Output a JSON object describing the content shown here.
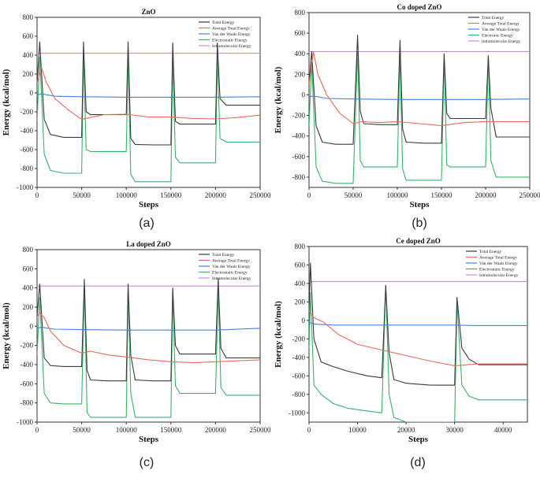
{
  "colors": {
    "total": "#3a3a3a",
    "average": "#f06a5a",
    "vdw": "#3f84e4",
    "electrostatic": "#39b36b",
    "intramolecular": "#c68be6",
    "axis": "#333333"
  },
  "chart_data": [
    {
      "type": "line",
      "title": "ZnO",
      "xlabel": "Steps",
      "ylabel": "Energy (kcal/mol)",
      "panel_label": "(a)",
      "xlim": [
        0,
        250000
      ],
      "ylim": [
        -1000,
        800
      ],
      "x_ticks": [
        0,
        50000,
        100000,
        150000,
        200000,
        250000
      ],
      "y_ticks": [
        -1000,
        -800,
        -600,
        -400,
        -200,
        0,
        200,
        400,
        600,
        800
      ],
      "legend": [
        "Total Energy",
        "Average Total Energy",
        "Van der Waals Energy",
        "Electrostatic Energy",
        "Intramolecular Energy"
      ],
      "legend_position": "top-right",
      "series": [
        {
          "name": "Total Energy",
          "color_key": "total",
          "x": [
            0,
            3000,
            8000,
            15000,
            30000,
            50000,
            52000,
            55000,
            60000,
            80000,
            100000,
            102000,
            105000,
            110000,
            130000,
            150000,
            152000,
            155000,
            160000,
            180000,
            200000,
            202000,
            205000,
            212000,
            230000,
            250000
          ],
          "y": [
            100,
            540,
            -280,
            -440,
            -470,
            -470,
            540,
            -200,
            -230,
            -230,
            -230,
            540,
            -480,
            -545,
            -550,
            -550,
            530,
            -300,
            -330,
            -330,
            -330,
            530,
            -60,
            -130,
            -130,
            -130
          ]
        },
        {
          "name": "Average Total Energy",
          "color_key": "average",
          "x": [
            0,
            5000,
            10000,
            20000,
            35000,
            50000,
            75000,
            100000,
            125000,
            150000,
            175000,
            200000,
            225000,
            250000
          ],
          "y": [
            100,
            270,
            120,
            -60,
            -180,
            -280,
            -230,
            -225,
            -255,
            -255,
            -270,
            -275,
            -260,
            -235
          ]
        },
        {
          "name": "Van der Waals Energy",
          "color_key": "vdw",
          "x": [
            0,
            5000,
            20000,
            50000,
            100000,
            150000,
            200000,
            250000
          ],
          "y": [
            -20,
            -10,
            -35,
            -40,
            -45,
            -45,
            -45,
            -40
          ]
        },
        {
          "name": "Electrostatic Energy",
          "color_key": "electrostatic",
          "x": [
            0,
            3000,
            8000,
            15000,
            30000,
            50000,
            52000,
            55000,
            60000,
            80000,
            100000,
            102000,
            105000,
            110000,
            130000,
            150000,
            152000,
            155000,
            160000,
            180000,
            200000,
            202000,
            205000,
            212000,
            230000,
            250000
          ],
          "y": [
            -300,
            380,
            -650,
            -820,
            -850,
            -850,
            380,
            -600,
            -620,
            -620,
            -620,
            380,
            -860,
            -940,
            -940,
            -940,
            380,
            -680,
            -740,
            -740,
            -740,
            380,
            -480,
            -520,
            -520,
            -520
          ]
        },
        {
          "name": "Intramolecular Energy",
          "color_key": "intramolecular",
          "x": [
            0,
            250000
          ],
          "y": [
            420,
            420
          ]
        }
      ]
    },
    {
      "type": "line",
      "title": "Co doped ZnO",
      "xlabel": "Steps",
      "ylabel": "Energy (kcal/mol)",
      "panel_label": "(b)",
      "xlim": [
        0,
        250000
      ],
      "ylim": [
        -900,
        800
      ],
      "x_ticks": [
        0,
        50000,
        100000,
        150000,
        200000,
        250000
      ],
      "y_ticks": [
        -800,
        -600,
        -400,
        -200,
        0,
        200,
        400,
        600,
        800
      ],
      "legend": [
        "Total Energy",
        "Average Total Energy",
        "Van der Waals Energy",
        "Electronic Energy",
        "Intramolecular Energy"
      ],
      "legend_position": "top-right",
      "series": [
        {
          "name": "Total Energy",
          "color_key": "total",
          "x": [
            0,
            3000,
            8000,
            15000,
            30000,
            50000,
            55000,
            58000,
            62000,
            80000,
            100000,
            103000,
            106000,
            110000,
            130000,
            150000,
            153000,
            156000,
            160000,
            180000,
            200000,
            203000,
            206000,
            212000,
            230000,
            250000
          ],
          "y": [
            100,
            420,
            -300,
            -460,
            -480,
            -480,
            580,
            -160,
            -280,
            -290,
            -290,
            530,
            -330,
            -460,
            -470,
            -470,
            400,
            -180,
            -230,
            -230,
            -230,
            380,
            -130,
            -410,
            -410,
            -410
          ]
        },
        {
          "name": "Average Total Energy",
          "color_key": "average",
          "x": [
            0,
            5000,
            10000,
            20000,
            35000,
            50000,
            60000,
            80000,
            100000,
            125000,
            150000,
            175000,
            200000,
            225000,
            250000
          ],
          "y": [
            100,
            420,
            200,
            0,
            -180,
            -280,
            -260,
            -270,
            -260,
            -280,
            -300,
            -270,
            -260,
            -260,
            -260
          ]
        },
        {
          "name": "Van der Waals Energy",
          "color_key": "vdw",
          "x": [
            0,
            5000,
            20000,
            50000,
            100000,
            150000,
            200000,
            250000
          ],
          "y": [
            -20,
            -10,
            -35,
            -40,
            -45,
            -45,
            -45,
            -40
          ]
        },
        {
          "name": "Electronic Energy",
          "color_key": "electrostatic",
          "x": [
            0,
            3000,
            8000,
            15000,
            30000,
            50000,
            55000,
            58000,
            62000,
            80000,
            100000,
            103000,
            106000,
            110000,
            130000,
            150000,
            153000,
            156000,
            160000,
            180000,
            200000,
            203000,
            206000,
            212000,
            230000,
            250000
          ],
          "y": [
            -300,
            320,
            -700,
            -840,
            -860,
            -860,
            420,
            -640,
            -700,
            -700,
            -700,
            400,
            -720,
            -830,
            -830,
            -830,
            380,
            -680,
            -700,
            -700,
            -700,
            380,
            -640,
            -800,
            -800,
            -800
          ]
        },
        {
          "name": "Intramolecular Energy",
          "color_key": "intramolecular",
          "x": [
            0,
            250000
          ],
          "y": [
            420,
            420
          ]
        }
      ]
    },
    {
      "type": "line",
      "title": "La doped ZnO",
      "xlabel": "Steps",
      "ylabel": "Energy (kcal/mol)",
      "panel_label": "(c)",
      "xlim": [
        0,
        250000
      ],
      "ylim": [
        -1000,
        800
      ],
      "x_ticks": [
        0,
        50000,
        100000,
        150000,
        200000,
        250000
      ],
      "y_ticks": [
        -1000,
        -800,
        -600,
        -400,
        -200,
        0,
        200,
        400,
        600,
        800
      ],
      "legend": [
        "Total Energy",
        "Average Total Energy",
        "Van der Waals Energy",
        "Electrostatic Energy",
        "Intramolecular Energy"
      ],
      "legend_position": "top-right",
      "series": [
        {
          "name": "Total Energy",
          "color_key": "total",
          "x": [
            0,
            3000,
            8000,
            15000,
            30000,
            50000,
            53000,
            56000,
            60000,
            80000,
            100000,
            102000,
            105000,
            110000,
            130000,
            150000,
            152000,
            155000,
            160000,
            180000,
            200000,
            203000,
            206000,
            212000,
            230000,
            250000
          ],
          "y": [
            100,
            440,
            -330,
            -410,
            -420,
            -420,
            490,
            -460,
            -560,
            -570,
            -570,
            440,
            -300,
            -560,
            -570,
            -570,
            400,
            -200,
            -290,
            -290,
            -290,
            500,
            -230,
            -330,
            -330,
            -330
          ]
        },
        {
          "name": "Average Total Energy",
          "color_key": "average",
          "x": [
            0,
            3000,
            8000,
            15000,
            30000,
            50000,
            60000,
            80000,
            100000,
            125000,
            150000,
            175000,
            200000,
            225000,
            250000
          ],
          "y": [
            100,
            140,
            90,
            -50,
            -200,
            -280,
            -260,
            -300,
            -320,
            -350,
            -370,
            -380,
            -370,
            -360,
            -350
          ]
        },
        {
          "name": "Van der Waals Energy",
          "color_key": "vdw",
          "x": [
            0,
            5000,
            20000,
            50000,
            100000,
            150000,
            200000,
            250000
          ],
          "y": [
            -20,
            -10,
            -30,
            -35,
            -40,
            -40,
            -40,
            -20
          ]
        },
        {
          "name": "Electrostatic Energy",
          "color_key": "electrostatic",
          "x": [
            0,
            3000,
            8000,
            15000,
            30000,
            50000,
            53000,
            56000,
            60000,
            80000,
            100000,
            102000,
            105000,
            110000,
            130000,
            150000,
            152000,
            155000,
            160000,
            180000,
            200000,
            203000,
            206000,
            212000,
            230000,
            250000
          ],
          "y": [
            -300,
            300,
            -700,
            -800,
            -810,
            -810,
            420,
            -900,
            -950,
            -950,
            -950,
            380,
            -700,
            -950,
            -950,
            -950,
            380,
            -620,
            -700,
            -700,
            -700,
            380,
            -640,
            -720,
            -720,
            -720
          ]
        },
        {
          "name": "Intramolecular Energy",
          "color_key": "intramolecular",
          "x": [
            0,
            250000
          ],
          "y": [
            420,
            420
          ]
        }
      ]
    },
    {
      "type": "line",
      "title": "Ce doped ZnO",
      "xlabel": "Steps",
      "ylabel": "Energy (kcal/mol)",
      "panel_label": "(d)",
      "xlim": [
        0,
        45000
      ],
      "ylim": [
        -1100,
        800
      ],
      "x_ticks": [
        0,
        10000,
        20000,
        30000,
        40000
      ],
      "y_ticks": [
        -1000,
        -800,
        -600,
        -400,
        -200,
        0,
        200,
        400,
        600,
        800
      ],
      "legend": [
        "Total Energy",
        "Average Total Energy",
        "Van der Waals Energy",
        "Electrostatic Energy",
        "Intramolecular Energy"
      ],
      "legend_position": "top-right",
      "series": [
        {
          "name": "Total Energy",
          "color_key": "total",
          "x": [
            0,
            300,
            1000,
            2500,
            5000,
            8000,
            12000,
            15000,
            15800,
            16500,
            17500,
            20000,
            25000,
            30000,
            30500,
            31500,
            33000,
            35000,
            40000,
            45000
          ],
          "y": [
            100,
            620,
            -200,
            -450,
            -500,
            -550,
            -600,
            -620,
            380,
            -350,
            -640,
            -680,
            -700,
            -700,
            250,
            -300,
            -420,
            -480,
            -480,
            -480
          ]
        },
        {
          "name": "Average Total Energy",
          "color_key": "average",
          "x": [
            0,
            1000,
            3000,
            6000,
            10000,
            15000,
            20000,
            25000,
            30000,
            35000,
            40000,
            45000
          ],
          "y": [
            100,
            30,
            -20,
            -150,
            -260,
            -320,
            -380,
            -440,
            -490,
            -470,
            -470,
            -470
          ]
        },
        {
          "name": "Van der Waals Energy",
          "color_key": "vdw",
          "x": [
            0,
            1000,
            5000,
            15000,
            30000,
            35000,
            45000
          ],
          "y": [
            -20,
            -40,
            -50,
            -50,
            -50,
            -55,
            -55
          ]
        },
        {
          "name": "Electrostatic Energy",
          "color_key": "electrostatic",
          "x": [
            0,
            300,
            1000,
            2500,
            5000,
            8000,
            12000,
            15000,
            15800,
            16500,
            17500,
            20000,
            25000,
            30000,
            30500,
            31500,
            33000,
            35000,
            40000,
            45000
          ],
          "y": [
            -300,
            300,
            -700,
            -800,
            -900,
            -950,
            -980,
            -1000,
            380,
            -800,
            -1050,
            -1100,
            -1100,
            -1100,
            200,
            -700,
            -820,
            -860,
            -860,
            -860
          ]
        },
        {
          "name": "Intramolecular Energy",
          "color_key": "intramolecular",
          "x": [
            0,
            45000
          ],
          "y": [
            420,
            420
          ]
        }
      ]
    }
  ]
}
